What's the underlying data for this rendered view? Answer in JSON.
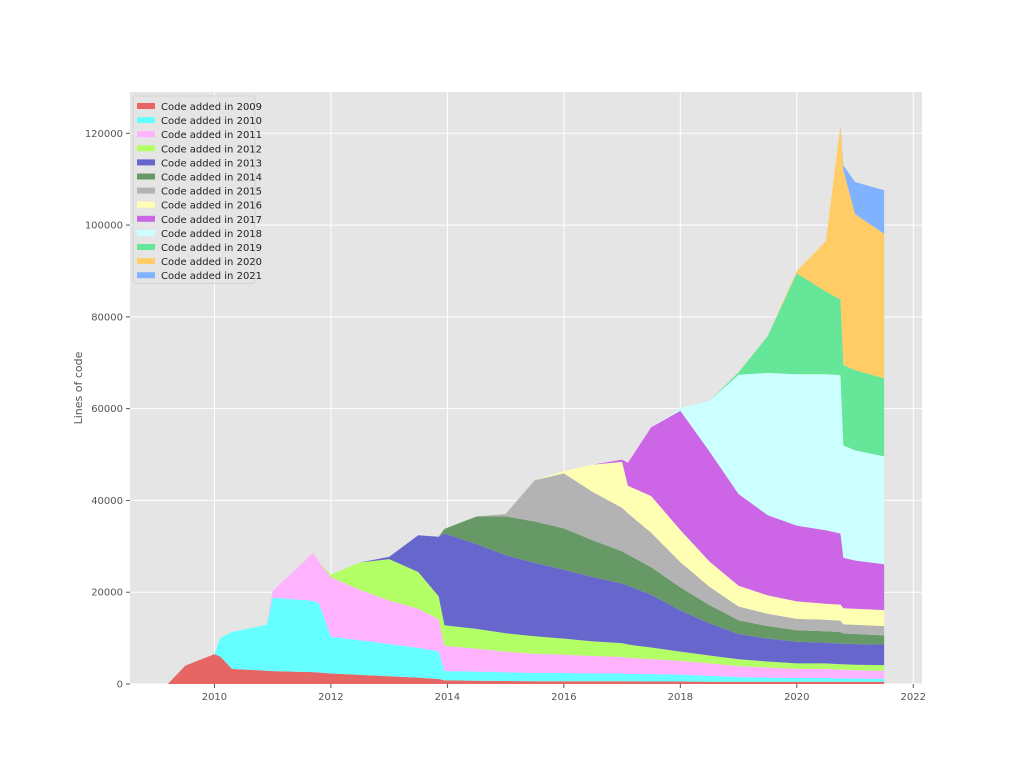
{
  "chart_data": {
    "type": "area",
    "stacked": true,
    "title": "",
    "xlabel": "",
    "ylabel": "Lines of code",
    "xlim": [
      2008.55,
      2022.15
    ],
    "ylim": [
      0,
      129000
    ],
    "xticks": [
      2010,
      2012,
      2014,
      2016,
      2018,
      2020,
      2022
    ],
    "yticks": [
      0,
      20000,
      40000,
      60000,
      80000,
      100000,
      120000
    ],
    "grid": true,
    "legend_position": "upper left",
    "x": [
      2009.2,
      2009.5,
      2010.0,
      2010.1,
      2010.3,
      2010.9,
      2011.0,
      2011.7,
      2011.8,
      2012.0,
      2012.5,
      2013.0,
      2013.5,
      2013.85,
      2013.95,
      2014.5,
      2015.0,
      2015.5,
      2016.0,
      2016.5,
      2017.0,
      2017.1,
      2017.5,
      2018.0,
      2018.5,
      2019.0,
      2019.5,
      2020.0,
      2020.5,
      2020.75,
      2020.8,
      2021.0,
      2021.5
    ],
    "series": [
      {
        "name": "Code added in 2009",
        "color": "#e66666",
        "values": [
          0,
          4000,
          6500,
          6000,
          3300,
          2900,
          2800,
          2600,
          2500,
          2300,
          2000,
          1700,
          1400,
          1100,
          800,
          700,
          650,
          600,
          600,
          600,
          600,
          600,
          550,
          550,
          500,
          500,
          500,
          500,
          500,
          500,
          500,
          500,
          500
        ]
      },
      {
        "name": "Code added in 2010",
        "color": "#66ffff",
        "values": [
          0,
          0,
          0,
          4000,
          8000,
          10000,
          16000,
          15500,
          15000,
          8000,
          7500,
          7000,
          6500,
          6000,
          2000,
          2000,
          1900,
          1800,
          1800,
          1700,
          1700,
          1600,
          1600,
          1500,
          1300,
          1000,
          900,
          800,
          800,
          700,
          700,
          700,
          600
        ]
      },
      {
        "name": "Code added in 2011",
        "color": "#ffb3ff",
        "values": [
          0,
          0,
          0,
          0,
          0,
          0,
          1500,
          10500,
          9000,
          13000,
          11000,
          9500,
          8500,
          7000,
          5500,
          5000,
          4500,
          4200,
          4000,
          3800,
          3600,
          3500,
          3300,
          3000,
          2700,
          2400,
          2200,
          2000,
          2000,
          1900,
          1900,
          1800,
          1800
        ]
      },
      {
        "name": "Code added in 2012",
        "color": "#b3ff66",
        "values": [
          0,
          0,
          0,
          0,
          0,
          0,
          0,
          0,
          0,
          500,
          6000,
          9000,
          8000,
          5000,
          4500,
          4300,
          4000,
          3800,
          3500,
          3200,
          3000,
          2900,
          2500,
          2000,
          1700,
          1500,
          1300,
          1200,
          1200,
          1200,
          1200,
          1200,
          1200
        ]
      },
      {
        "name": "Code added in 2013",
        "color": "#6666cc",
        "values": [
          0,
          0,
          0,
          0,
          0,
          0,
          0,
          0,
          0,
          0,
          0,
          500,
          8000,
          13000,
          20000,
          18500,
          17000,
          16000,
          15000,
          14000,
          13000,
          12800,
          11500,
          9000,
          7000,
          5500,
          5000,
          4700,
          4500,
          4500,
          4500,
          4500,
          4500
        ]
      },
      {
        "name": "Code added in 2014",
        "color": "#669966",
        "values": [
          0,
          0,
          0,
          0,
          0,
          0,
          0,
          0,
          0,
          0,
          0,
          0,
          0,
          0,
          1000,
          6000,
          8500,
          9000,
          9000,
          8000,
          7000,
          6800,
          6000,
          5000,
          4000,
          3000,
          2700,
          2500,
          2500,
          2500,
          2200,
          2200,
          2000
        ]
      },
      {
        "name": "Code added in 2015",
        "color": "#b3b3b3",
        "values": [
          0,
          0,
          0,
          0,
          0,
          0,
          0,
          0,
          0,
          0,
          0,
          0,
          0,
          0,
          0,
          0,
          500,
          9000,
          12000,
          10500,
          9500,
          9000,
          7500,
          5500,
          4000,
          3000,
          2700,
          2500,
          2500,
          2500,
          2000,
          2000,
          2000
        ]
      },
      {
        "name": "Code added in 2016",
        "color": "#ffffb3",
        "values": [
          0,
          0,
          0,
          0,
          0,
          0,
          0,
          0,
          0,
          0,
          0,
          0,
          0,
          0,
          0,
          0,
          0,
          0,
          500,
          6000,
          10000,
          6000,
          8000,
          7000,
          5500,
          4500,
          4000,
          3800,
          3500,
          3500,
          3500,
          3500,
          3500
        ]
      },
      {
        "name": "Code added in 2017",
        "color": "#cc66e6",
        "values": [
          0,
          0,
          0,
          0,
          0,
          0,
          0,
          0,
          0,
          0,
          0,
          0,
          0,
          0,
          0,
          0,
          0,
          0,
          0,
          0,
          500,
          5000,
          15000,
          26000,
          24000,
          20000,
          17500,
          16500,
          16000,
          15500,
          11000,
          10500,
          10000
        ]
      },
      {
        "name": "Code added in 2018",
        "color": "#ccffff",
        "values": [
          0,
          0,
          0,
          0,
          0,
          0,
          0,
          0,
          0,
          0,
          0,
          0,
          0,
          0,
          0,
          0,
          0,
          0,
          0,
          0,
          0,
          0,
          0,
          500,
          11000,
          26000,
          31000,
          33000,
          34000,
          34500,
          24500,
          24000,
          23500
        ]
      },
      {
        "name": "Code added in 2019",
        "color": "#66e699",
        "values": [
          0,
          0,
          0,
          0,
          0,
          0,
          0,
          0,
          0,
          0,
          0,
          0,
          0,
          0,
          0,
          0,
          0,
          0,
          0,
          0,
          0,
          0,
          0,
          0,
          0,
          500,
          8000,
          22000,
          18000,
          16500,
          17500,
          17500,
          17000
        ]
      },
      {
        "name": "Code added in 2020",
        "color": "#ffcc66",
        "values": [
          0,
          0,
          0,
          0,
          0,
          0,
          0,
          0,
          0,
          0,
          0,
          0,
          0,
          0,
          0,
          0,
          0,
          0,
          0,
          0,
          0,
          0,
          0,
          0,
          0,
          0,
          0,
          500,
          11000,
          38000,
          42500,
          34000,
          31500
        ]
      },
      {
        "name": "Code added in 2021",
        "color": "#80b3ff",
        "values": [
          0,
          0,
          0,
          0,
          0,
          0,
          0,
          0,
          0,
          0,
          0,
          0,
          0,
          0,
          0,
          0,
          0,
          0,
          0,
          0,
          0,
          0,
          0,
          0,
          0,
          0,
          0,
          0,
          0,
          0,
          1000,
          7000,
          9500
        ]
      }
    ]
  }
}
